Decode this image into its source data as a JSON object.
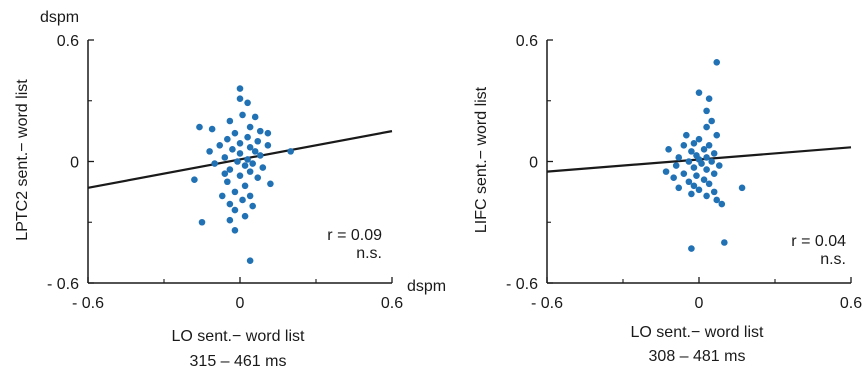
{
  "chart_data": [
    {
      "type": "scatter",
      "unit_label_y": "dspm",
      "unit_label_x": "dspm",
      "ylabel": "LPTC2 sent.− word list",
      "xlabel": "LO sent.− word list",
      "subtitle": "315 – 461 ms",
      "xlim": [
        -0.6,
        0.6
      ],
      "ylim": [
        -0.6,
        0.6
      ],
      "xticks": [
        "- 0.6",
        "0",
        "0.6"
      ],
      "yticks": [
        "0.6",
        "0",
        "- 0.6"
      ],
      "stat_r": "r = 0.09",
      "stat_sig": "n.s.",
      "point_color": "#2171b5",
      "line_color": "#1a1a1a",
      "fit_line": {
        "x": [
          -0.6,
          0.6
        ],
        "y": [
          -0.13,
          0.15
        ]
      },
      "points": [
        {
          "x": 0.0,
          "y": 0.36
        },
        {
          "x": 0.0,
          "y": 0.31
        },
        {
          "x": 0.03,
          "y": 0.29
        },
        {
          "x": 0.01,
          "y": 0.23
        },
        {
          "x": 0.06,
          "y": 0.22
        },
        {
          "x": -0.04,
          "y": 0.2
        },
        {
          "x": 0.04,
          "y": 0.17
        },
        {
          "x": -0.11,
          "y": 0.16
        },
        {
          "x": -0.16,
          "y": 0.17
        },
        {
          "x": 0.08,
          "y": 0.15
        },
        {
          "x": 0.11,
          "y": 0.14
        },
        {
          "x": -0.02,
          "y": 0.14
        },
        {
          "x": 0.03,
          "y": 0.12
        },
        {
          "x": -0.05,
          "y": 0.11
        },
        {
          "x": 0.07,
          "y": 0.1
        },
        {
          "x": 0.0,
          "y": 0.09
        },
        {
          "x": -0.08,
          "y": 0.08
        },
        {
          "x": 0.11,
          "y": 0.08
        },
        {
          "x": 0.04,
          "y": 0.07
        },
        {
          "x": -0.03,
          "y": 0.06
        },
        {
          "x": 0.06,
          "y": 0.05
        },
        {
          "x": -0.12,
          "y": 0.05
        },
        {
          "x": 0.0,
          "y": 0.04
        },
        {
          "x": 0.2,
          "y": 0.05
        },
        {
          "x": 0.08,
          "y": 0.03
        },
        {
          "x": -0.06,
          "y": 0.02
        },
        {
          "x": 0.03,
          "y": 0.01
        },
        {
          "x": -0.01,
          "y": 0.0
        },
        {
          "x": 0.05,
          "y": -0.01
        },
        {
          "x": -0.1,
          "y": -0.01
        },
        {
          "x": 0.02,
          "y": -0.02
        },
        {
          "x": 0.09,
          "y": -0.03
        },
        {
          "x": -0.04,
          "y": -0.04
        },
        {
          "x": 0.04,
          "y": -0.05
        },
        {
          "x": -0.06,
          "y": -0.06
        },
        {
          "x": 0.0,
          "y": -0.07
        },
        {
          "x": 0.07,
          "y": -0.08
        },
        {
          "x": -0.18,
          "y": -0.09
        },
        {
          "x": 0.12,
          "y": -0.11
        },
        {
          "x": -0.05,
          "y": -0.1
        },
        {
          "x": 0.02,
          "y": -0.12
        },
        {
          "x": -0.02,
          "y": -0.15
        },
        {
          "x": 0.04,
          "y": -0.17
        },
        {
          "x": -0.07,
          "y": -0.17
        },
        {
          "x": 0.01,
          "y": -0.19
        },
        {
          "x": -0.04,
          "y": -0.21
        },
        {
          "x": 0.05,
          "y": -0.22
        },
        {
          "x": -0.02,
          "y": -0.24
        },
        {
          "x": 0.02,
          "y": -0.27
        },
        {
          "x": -0.04,
          "y": -0.29
        },
        {
          "x": -0.15,
          "y": -0.3
        },
        {
          "x": -0.02,
          "y": -0.34
        },
        {
          "x": 0.04,
          "y": -0.49
        }
      ]
    },
    {
      "type": "scatter",
      "ylabel": "LIFC sent.− word list",
      "xlabel": "LO sent.− word list",
      "subtitle": "308 – 481 ms",
      "xlim": [
        -0.6,
        0.6
      ],
      "ylim": [
        -0.6,
        0.6
      ],
      "xticks": [
        "- 0.6",
        "0",
        "0.6"
      ],
      "yticks": [
        "0.6",
        "0",
        "- 0.6"
      ],
      "stat_r": "r = 0.04",
      "stat_sig": "n.s.",
      "point_color": "#2171b5",
      "line_color": "#1a1a1a",
      "fit_line": {
        "x": [
          -0.6,
          0.6
        ],
        "y": [
          -0.05,
          0.07
        ]
      },
      "points": [
        {
          "x": 0.07,
          "y": 0.49
        },
        {
          "x": 0.0,
          "y": 0.34
        },
        {
          "x": 0.04,
          "y": 0.31
        },
        {
          "x": 0.03,
          "y": 0.25
        },
        {
          "x": 0.05,
          "y": 0.2
        },
        {
          "x": 0.03,
          "y": 0.17
        },
        {
          "x": 0.07,
          "y": 0.13
        },
        {
          "x": -0.05,
          "y": 0.13
        },
        {
          "x": 0.0,
          "y": 0.11
        },
        {
          "x": -0.02,
          "y": 0.09
        },
        {
          "x": 0.04,
          "y": 0.08
        },
        {
          "x": -0.06,
          "y": 0.08
        },
        {
          "x": -0.12,
          "y": 0.06
        },
        {
          "x": 0.02,
          "y": 0.06
        },
        {
          "x": -0.03,
          "y": 0.05
        },
        {
          "x": 0.06,
          "y": 0.04
        },
        {
          "x": -0.01,
          "y": 0.03
        },
        {
          "x": 0.03,
          "y": 0.02
        },
        {
          "x": -0.08,
          "y": 0.02
        },
        {
          "x": 0.0,
          "y": 0.01
        },
        {
          "x": 0.05,
          "y": 0.0
        },
        {
          "x": -0.04,
          "y": 0.0
        },
        {
          "x": 0.01,
          "y": -0.01
        },
        {
          "x": -0.09,
          "y": -0.02
        },
        {
          "x": 0.08,
          "y": -0.02
        },
        {
          "x": -0.02,
          "y": -0.03
        },
        {
          "x": 0.03,
          "y": -0.04
        },
        {
          "x": -0.13,
          "y": -0.05
        },
        {
          "x": -0.06,
          "y": -0.06
        },
        {
          "x": 0.06,
          "y": -0.06
        },
        {
          "x": -0.01,
          "y": -0.07
        },
        {
          "x": -0.1,
          "y": -0.08
        },
        {
          "x": 0.02,
          "y": -0.09
        },
        {
          "x": -0.04,
          "y": -0.1
        },
        {
          "x": 0.04,
          "y": -0.11
        },
        {
          "x": -0.02,
          "y": -0.12
        },
        {
          "x": 0.17,
          "y": -0.13
        },
        {
          "x": -0.08,
          "y": -0.13
        },
        {
          "x": 0.0,
          "y": -0.14
        },
        {
          "x": 0.06,
          "y": -0.15
        },
        {
          "x": -0.03,
          "y": -0.16
        },
        {
          "x": 0.03,
          "y": -0.17
        },
        {
          "x": 0.07,
          "y": -0.19
        },
        {
          "x": 0.09,
          "y": -0.21
        },
        {
          "x": 0.1,
          "y": -0.4
        },
        {
          "x": -0.03,
          "y": -0.43
        }
      ]
    }
  ]
}
